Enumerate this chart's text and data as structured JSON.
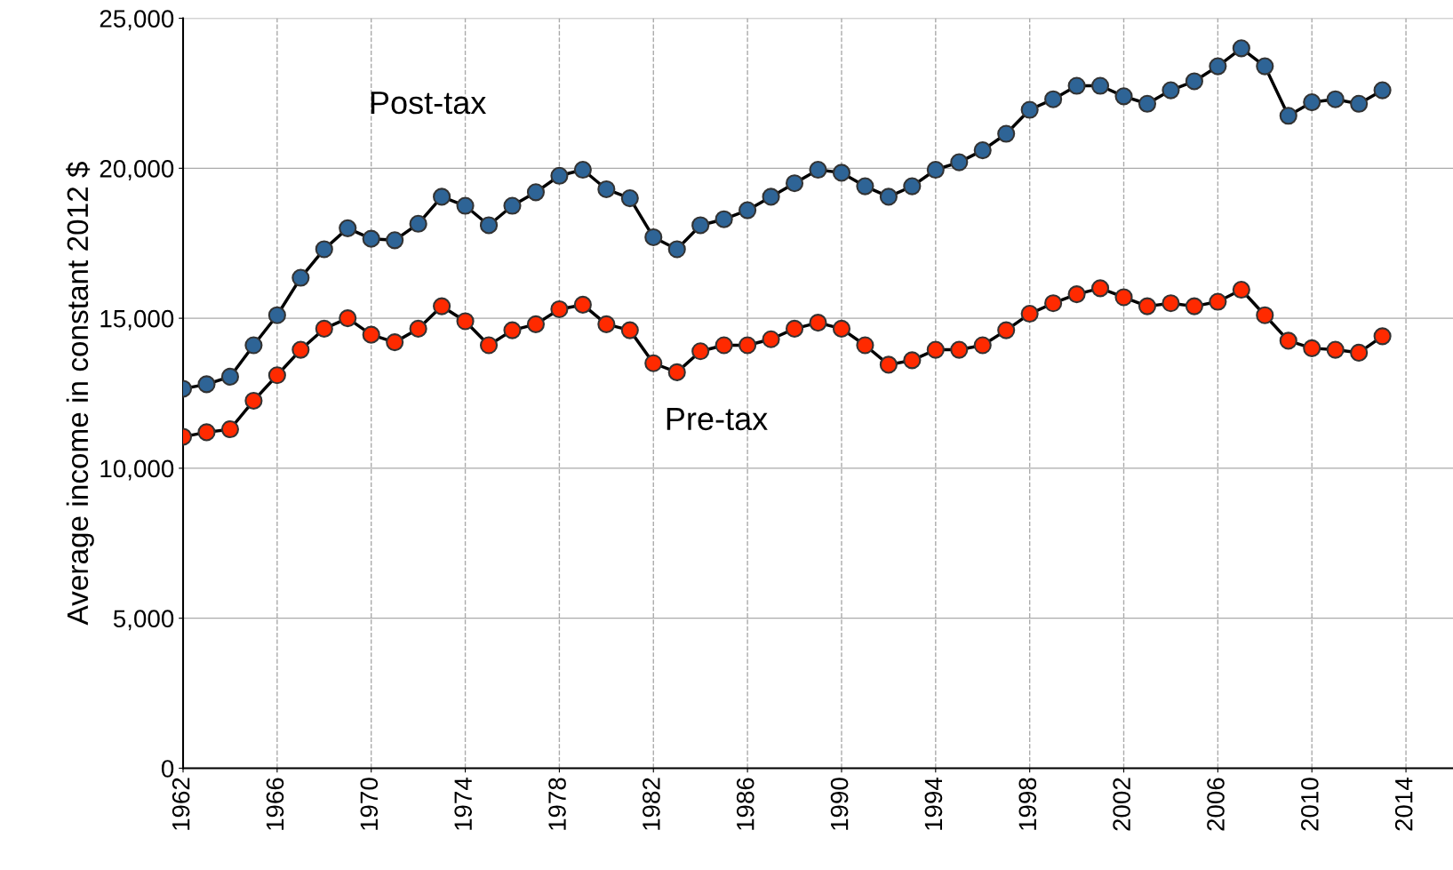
{
  "chart_data": {
    "type": "line",
    "ylabel": "Average income in constant 2012 $",
    "x": [
      1962,
      1963,
      1964,
      1965,
      1966,
      1967,
      1968,
      1969,
      1970,
      1971,
      1972,
      1973,
      1974,
      1975,
      1976,
      1977,
      1978,
      1979,
      1980,
      1981,
      1982,
      1983,
      1984,
      1985,
      1986,
      1987,
      1988,
      1989,
      1990,
      1991,
      1992,
      1993,
      1994,
      1995,
      1996,
      1997,
      1998,
      1999,
      2000,
      2001,
      2002,
      2003,
      2004,
      2005,
      2006,
      2007,
      2008,
      2009,
      2010,
      2011,
      2012,
      2013
    ],
    "series": [
      {
        "name": "Post-tax",
        "color": "#2e6496",
        "values": [
          12650,
          12800,
          13050,
          14100,
          15100,
          16350,
          17300,
          18000,
          17650,
          17600,
          18150,
          19050,
          18750,
          18100,
          18750,
          19200,
          19750,
          19950,
          19300,
          19000,
          17700,
          17300,
          18100,
          18300,
          18600,
          19050,
          19500,
          19950,
          19850,
          19400,
          19050,
          19400,
          19950,
          20200,
          20600,
          21150,
          21950,
          22300,
          22750,
          22750,
          22400,
          22150,
          22600,
          22900,
          23400,
          24000,
          23400,
          21750,
          22200,
          22300,
          22150,
          22600
        ]
      },
      {
        "name": "Pre-tax",
        "color": "#ff2a00",
        "values": [
          11050,
          11200,
          11300,
          12250,
          13100,
          13950,
          14650,
          15000,
          14450,
          14200,
          14650,
          15400,
          14900,
          14100,
          14600,
          14800,
          15300,
          15450,
          14800,
          14600,
          13500,
          13200,
          13900,
          14100,
          14100,
          14300,
          14650,
          14850,
          14650,
          14100,
          13450,
          13600,
          13950,
          13950,
          14100,
          14600,
          15150,
          15500,
          15800,
          16000,
          15700,
          15400,
          15500,
          15400,
          15550,
          15950,
          15100,
          14250,
          14000,
          13950,
          13850,
          14400
        ]
      }
    ],
    "xlim": [
      1962,
      2016
    ],
    "xticks": [
      1962,
      1966,
      1970,
      1974,
      1978,
      1982,
      1986,
      1990,
      1994,
      1998,
      2002,
      2006,
      2010,
      2014
    ],
    "ylim": [
      0,
      25000
    ],
    "yticks": [
      0,
      {
        "value": 5000,
        "label": "5,000"
      },
      {
        "value": 10000,
        "label": "10,000"
      },
      {
        "value": 15000,
        "label": "15,000"
      },
      {
        "value": 20000,
        "label": "20,000"
      },
      {
        "value": 25000,
        "label": "25,000"
      }
    ],
    "grid": true,
    "marker": "circle",
    "line_style": "solid"
  }
}
